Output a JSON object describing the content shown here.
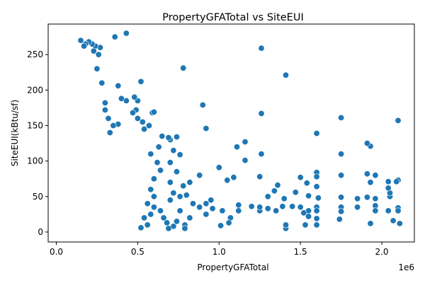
{
  "chart_data": {
    "type": "scatter",
    "title": "PropertyGFATotal vs SiteEUI",
    "xlabel": "PropertyGFATotal",
    "ylabel": "SiteEUI(kBtu/sf)",
    "x_offset_label": "1e6",
    "xlim": [
      -50000,
      2200000
    ],
    "ylim": [
      -14,
      293
    ],
    "x_ticks": [
      0,
      500000,
      1000000,
      1500000,
      2000000
    ],
    "x_tick_labels": [
      "0.0",
      "0.5",
      "1.0",
      "1.5",
      "2.0"
    ],
    "y_ticks": [
      0,
      50,
      100,
      150,
      200,
      250
    ],
    "y_tick_labels": [
      "0",
      "50",
      "100",
      "150",
      "200",
      "250"
    ],
    "grid": false,
    "marker_color": "#1f77b4",
    "marker_edge_color": "#ffffff",
    "points": [
      [
        430000,
        280
      ],
      [
        1260000,
        259
      ],
      [
        780000,
        231
      ],
      [
        1410000,
        221
      ],
      [
        520000,
        212
      ],
      [
        900000,
        179
      ],
      [
        1260000,
        167
      ],
      [
        1750000,
        161
      ],
      [
        2100000,
        157
      ],
      [
        920000,
        146
      ],
      [
        1600000,
        139
      ],
      [
        1160000,
        127
      ],
      [
        1930000,
        121
      ],
      [
        1910000,
        125
      ],
      [
        1110000,
        120
      ],
      [
        1750000,
        110
      ],
      [
        1260000,
        110
      ],
      [
        1160000,
        101
      ],
      [
        1000000,
        91
      ],
      [
        1910000,
        82
      ],
      [
        1960000,
        80
      ],
      [
        1600000,
        84
      ],
      [
        1600000,
        78
      ],
      [
        1250000,
        78
      ],
      [
        1500000,
        77
      ],
      [
        1090000,
        77
      ],
      [
        1750000,
        80
      ],
      [
        2100000,
        73
      ],
      [
        2090000,
        71
      ],
      [
        2040000,
        71
      ],
      [
        1930000,
        70
      ],
      [
        1050000,
        73
      ],
      [
        1540000,
        69
      ],
      [
        1360000,
        66
      ],
      [
        1600000,
        64
      ],
      [
        1470000,
        56
      ],
      [
        1550000,
        51
      ],
      [
        1610000,
        48
      ],
      [
        1750000,
        49
      ],
      [
        1850000,
        47
      ],
      [
        1910000,
        49
      ],
      [
        1960000,
        47
      ],
      [
        2050000,
        50
      ],
      [
        2050000,
        55
      ],
      [
        2040000,
        62
      ],
      [
        1340000,
        58
      ],
      [
        1300000,
        50
      ],
      [
        1400000,
        47
      ],
      [
        1390000,
        36
      ],
      [
        1300000,
        33
      ],
      [
        1350000,
        30
      ],
      [
        1450000,
        36
      ],
      [
        1500000,
        35
      ],
      [
        1550000,
        30
      ],
      [
        1600000,
        35
      ],
      [
        1600000,
        30
      ],
      [
        1520000,
        27
      ],
      [
        1550000,
        22
      ],
      [
        1600000,
        19
      ],
      [
        1750000,
        35
      ],
      [
        1750000,
        29
      ],
      [
        1740000,
        18
      ],
      [
        1850000,
        35
      ],
      [
        1960000,
        37
      ],
      [
        1960000,
        30
      ],
      [
        2040000,
        30
      ],
      [
        2100000,
        34
      ],
      [
        2100000,
        30
      ],
      [
        2110000,
        12
      ],
      [
        2070000,
        16
      ],
      [
        1930000,
        12
      ],
      [
        1600000,
        10
      ],
      [
        1530000,
        10
      ],
      [
        1410000,
        5
      ],
      [
        1410000,
        10
      ],
      [
        1250000,
        30
      ],
      [
        1250000,
        35
      ],
      [
        1200000,
        36
      ],
      [
        1120000,
        38
      ],
      [
        1120000,
        30
      ],
      [
        1020000,
        30
      ],
      [
        1070000,
        20
      ],
      [
        1060000,
        13
      ],
      [
        1010000,
        9
      ],
      [
        960000,
        33
      ],
      [
        920000,
        40
      ],
      [
        880000,
        35
      ],
      [
        920000,
        25
      ],
      [
        950000,
        45
      ],
      [
        880000,
        80
      ],
      [
        820000,
        70
      ],
      [
        780000,
        65
      ],
      [
        760000,
        50
      ],
      [
        760000,
        30
      ],
      [
        800000,
        52
      ],
      [
        840000,
        40
      ],
      [
        820000,
        20
      ],
      [
        790000,
        10
      ],
      [
        790000,
        5
      ],
      [
        720000,
        8
      ],
      [
        740000,
        15
      ],
      [
        690000,
        5
      ],
      [
        680000,
        13
      ],
      [
        660000,
        20
      ],
      [
        640000,
        30
      ],
      [
        700000,
        45
      ],
      [
        720000,
        55
      ],
      [
        700000,
        70
      ],
      [
        740000,
        85
      ],
      [
        700000,
        98
      ],
      [
        760000,
        109
      ],
      [
        720000,
        115
      ],
      [
        700000,
        130
      ],
      [
        740000,
        134
      ],
      [
        690000,
        133
      ],
      [
        650000,
        135
      ],
      [
        630000,
        120
      ],
      [
        580000,
        110
      ],
      [
        620000,
        98
      ],
      [
        640000,
        87
      ],
      [
        600000,
        75
      ],
      [
        580000,
        60
      ],
      [
        600000,
        50
      ],
      [
        560000,
        40
      ],
      [
        600000,
        35
      ],
      [
        580000,
        25
      ],
      [
        540000,
        20
      ],
      [
        560000,
        10
      ],
      [
        520000,
        6
      ],
      [
        590000,
        168
      ],
      [
        600000,
        169
      ],
      [
        570000,
        150
      ],
      [
        540000,
        145
      ],
      [
        500000,
        160
      ],
      [
        530000,
        155
      ],
      [
        490000,
        172
      ],
      [
        470000,
        168
      ],
      [
        500000,
        185
      ],
      [
        480000,
        190
      ],
      [
        430000,
        185
      ],
      [
        400000,
        188
      ],
      [
        380000,
        206
      ],
      [
        360000,
        275
      ],
      [
        380000,
        152
      ],
      [
        350000,
        150
      ],
      [
        330000,
        140
      ],
      [
        320000,
        160
      ],
      [
        300000,
        172
      ],
      [
        300000,
        182
      ],
      [
        280000,
        210
      ],
      [
        250000,
        230
      ],
      [
        260000,
        250
      ],
      [
        270000,
        260
      ],
      [
        240000,
        262
      ],
      [
        230000,
        255
      ],
      [
        220000,
        265
      ],
      [
        200000,
        268
      ],
      [
        180000,
        265
      ],
      [
        170000,
        262
      ],
      [
        150000,
        270
      ]
    ]
  }
}
